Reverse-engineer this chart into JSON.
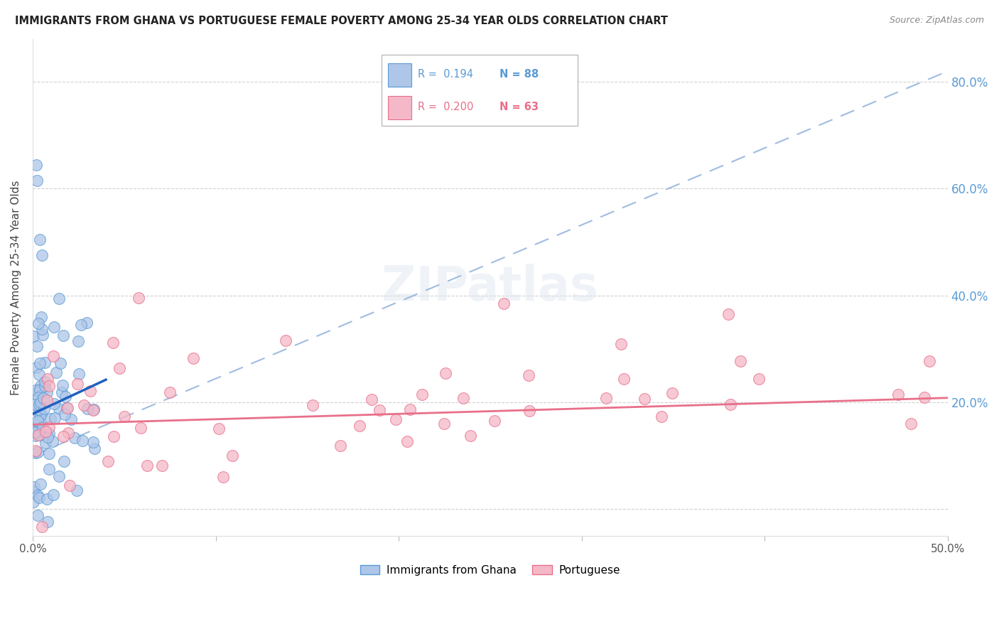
{
  "title": "IMMIGRANTS FROM GHANA VS PORTUGUESE FEMALE POVERTY AMONG 25-34 YEAR OLDS CORRELATION CHART",
  "source": "Source: ZipAtlas.com",
  "ylabel": "Female Poverty Among 25-34 Year Olds",
  "xlim": [
    0.0,
    0.5
  ],
  "ylim": [
    -0.05,
    0.88
  ],
  "yticks": [
    0.0,
    0.2,
    0.4,
    0.6,
    0.8
  ],
  "ghana_color": "#aec6e8",
  "ghana_edge_color": "#5b9bd5",
  "portuguese_color": "#f4b8c8",
  "portuguese_edge_color": "#e8708a",
  "ghana_line_color": "#2060c0",
  "portuguese_line_color": "#e8708a",
  "dashed_line_color": "#a0bce0",
  "right_tick_color": "#5b9bd5",
  "title_color": "#222222",
  "source_color": "#888888",
  "legend_R1": "R =  0.194",
  "legend_N1": "N = 88",
  "legend_R2": "R =  0.200",
  "legend_N2": "N = 63",
  "ghana_N": 88,
  "portuguese_N": 63,
  "ghana_line_x": [
    0.0,
    0.04
  ],
  "ghana_line_y": [
    0.178,
    0.242
  ],
  "port_line_x": [
    0.0,
    0.5
  ],
  "port_line_y": [
    0.158,
    0.208
  ],
  "dash_line_x": [
    0.0,
    0.5
  ],
  "dash_line_y": [
    0.1,
    0.82
  ]
}
